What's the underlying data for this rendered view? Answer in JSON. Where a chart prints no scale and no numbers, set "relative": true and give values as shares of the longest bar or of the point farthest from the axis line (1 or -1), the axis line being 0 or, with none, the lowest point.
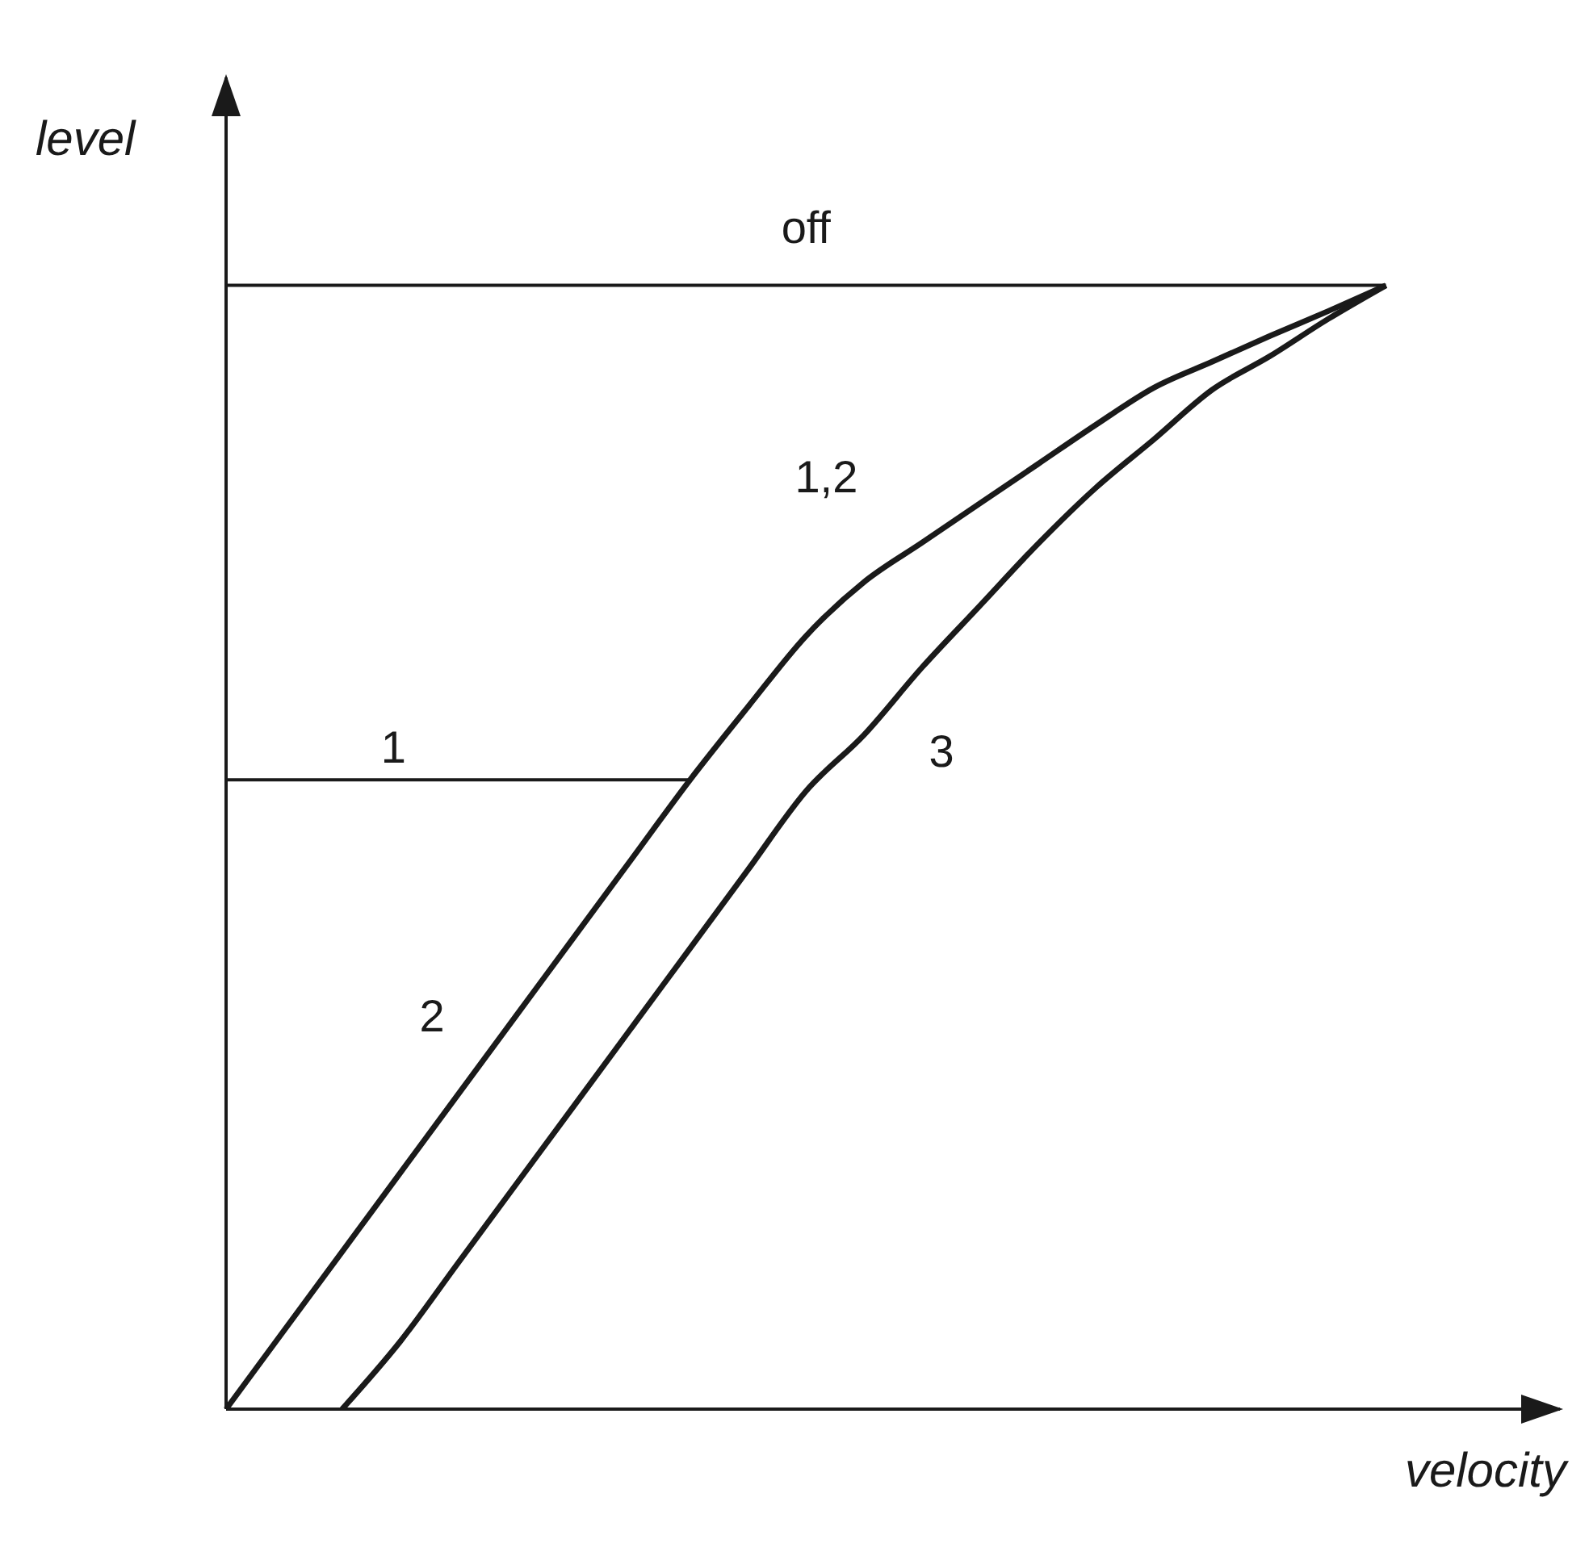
{
  "chart_data": {
    "type": "line",
    "relative": true,
    "xlabel": "velocity",
    "ylabel": "level",
    "legend": false,
    "grid": false,
    "categories": [
      null,
      null,
      null,
      null,
      null,
      null,
      null,
      null,
      null,
      null,
      null,
      null,
      null,
      null,
      null,
      null,
      null,
      null,
      null,
      null,
      null,
      null,
      null,
      null
    ],
    "series": [
      {
        "name": "off",
        "color": "#1a1a1a",
        "values": [
          1,
          1,
          1,
          1,
          1,
          1,
          1,
          1,
          1,
          1,
          1,
          1,
          1,
          1,
          1,
          1,
          1,
          1,
          1,
          1,
          1,
          null,
          null,
          null
        ]
      },
      {
        "name": "1",
        "color": "#1a1a1a",
        "values": [
          0.56,
          0.56,
          0.56,
          0.56,
          0.56,
          0.56,
          0.56,
          0.56,
          0.56,
          null,
          null,
          null,
          null,
          null,
          null,
          null,
          null,
          null,
          null,
          null,
          null,
          null,
          null,
          null
        ]
      },
      {
        "name": "2",
        "color": "#1a1a1a",
        "values": [
          0,
          0.07,
          0.14,
          0.21,
          0.28,
          0.35,
          0.42,
          0.49,
          0.56,
          0.625,
          0.688,
          0.736,
          0.771,
          0.806,
          0.841,
          0.876,
          0.909,
          0.932,
          0.955,
          0.977,
          1,
          null,
          null,
          null
        ]
      },
      {
        "name": "3",
        "color": "#1a1a1a",
        "values": [
          null,
          null,
          0,
          0.06,
          0.13,
          0.2,
          0.27,
          0.34,
          0.41,
          0.48,
          0.55,
          0.6,
          0.66,
          0.715,
          0.77,
          0.82,
          0.863,
          0.907,
          0.937,
          0.97,
          1,
          null,
          null,
          null
        ]
      }
    ],
    "annotations": [
      "1,2"
    ]
  }
}
